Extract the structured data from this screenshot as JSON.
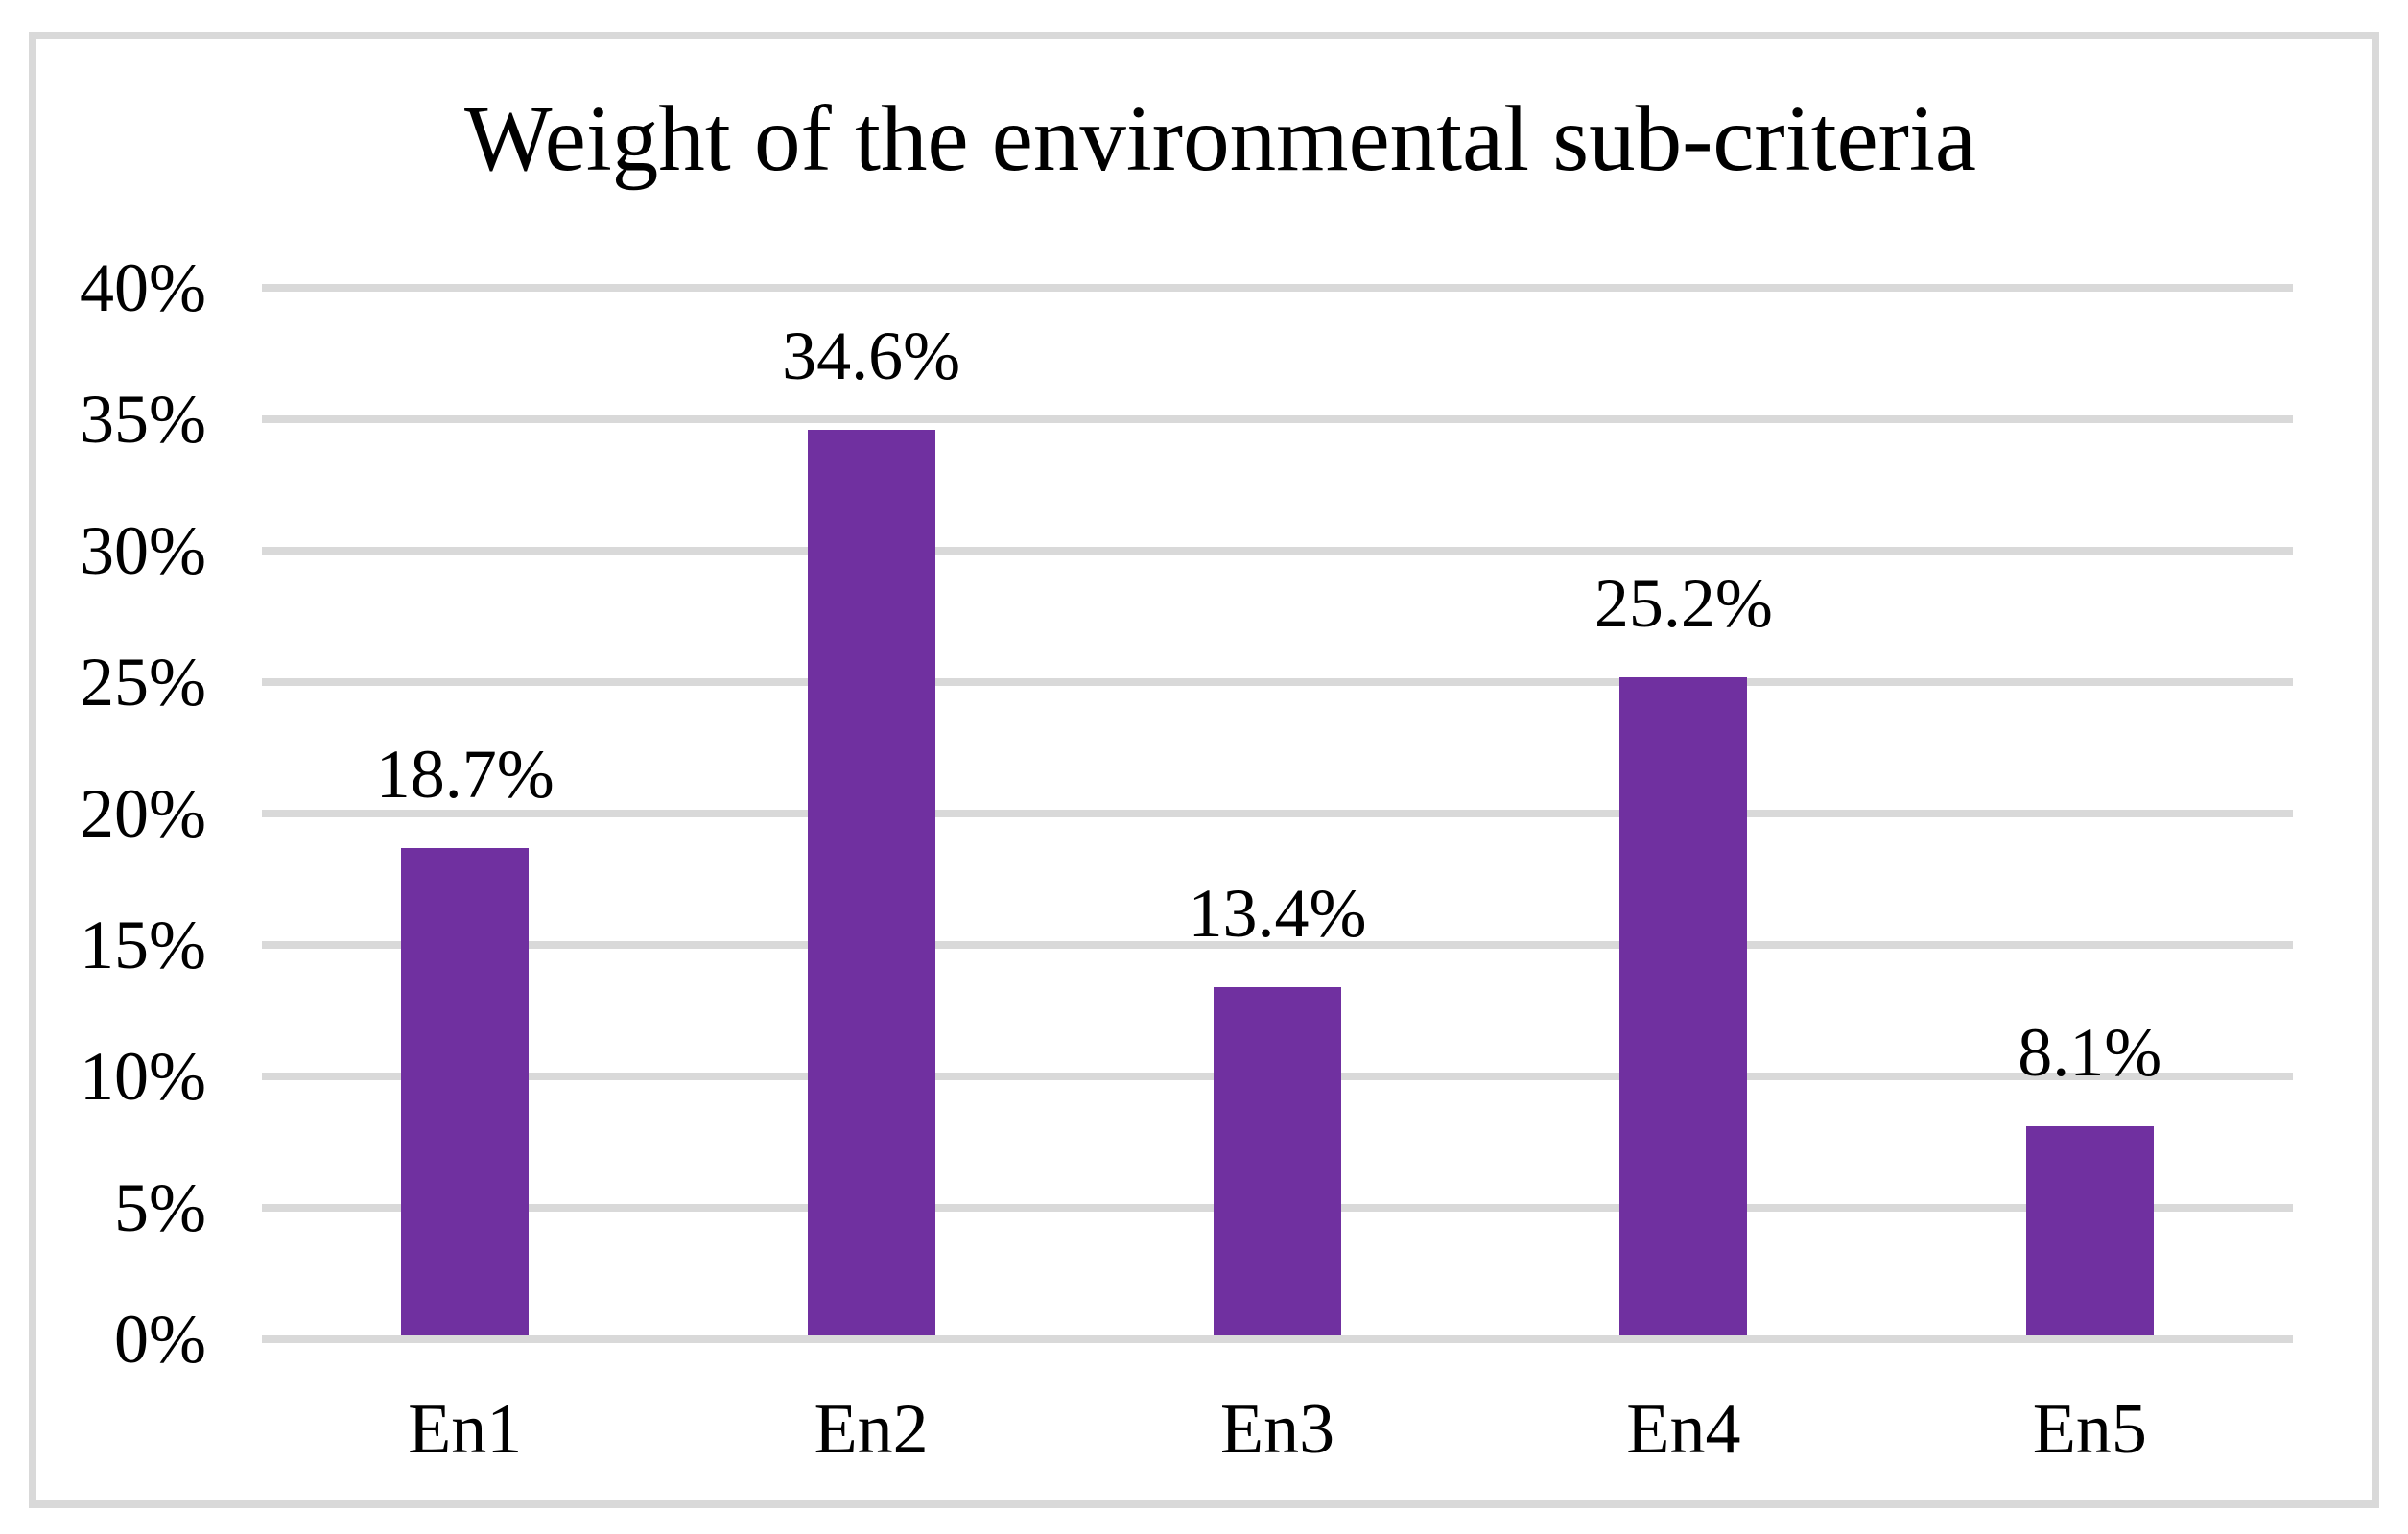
{
  "figure": {
    "background": "#FFFFFF",
    "border_color": "#D9D9D9"
  },
  "chart_data": {
    "type": "bar",
    "title": "Weight of the environmental sub-criteria",
    "categories": [
      "En1",
      "En2",
      "En3",
      "En4",
      "En5"
    ],
    "values": [
      18.7,
      34.6,
      13.4,
      25.2,
      8.1
    ],
    "data_labels": [
      "18.7%",
      "34.6%",
      "13.4%",
      "25.2%",
      "8.1%"
    ],
    "xlabel": "",
    "ylabel": "",
    "ylim": [
      0,
      40
    ],
    "y_tick_step": 5,
    "y_tick_labels": [
      "0%",
      "5%",
      "10%",
      "15%",
      "20%",
      "25%",
      "30%",
      "35%",
      "40%"
    ],
    "grid": true,
    "legend": "none",
    "bar_color": "#7030A0",
    "gridline_color": "#D9D9D9",
    "text_color": "#000000"
  }
}
